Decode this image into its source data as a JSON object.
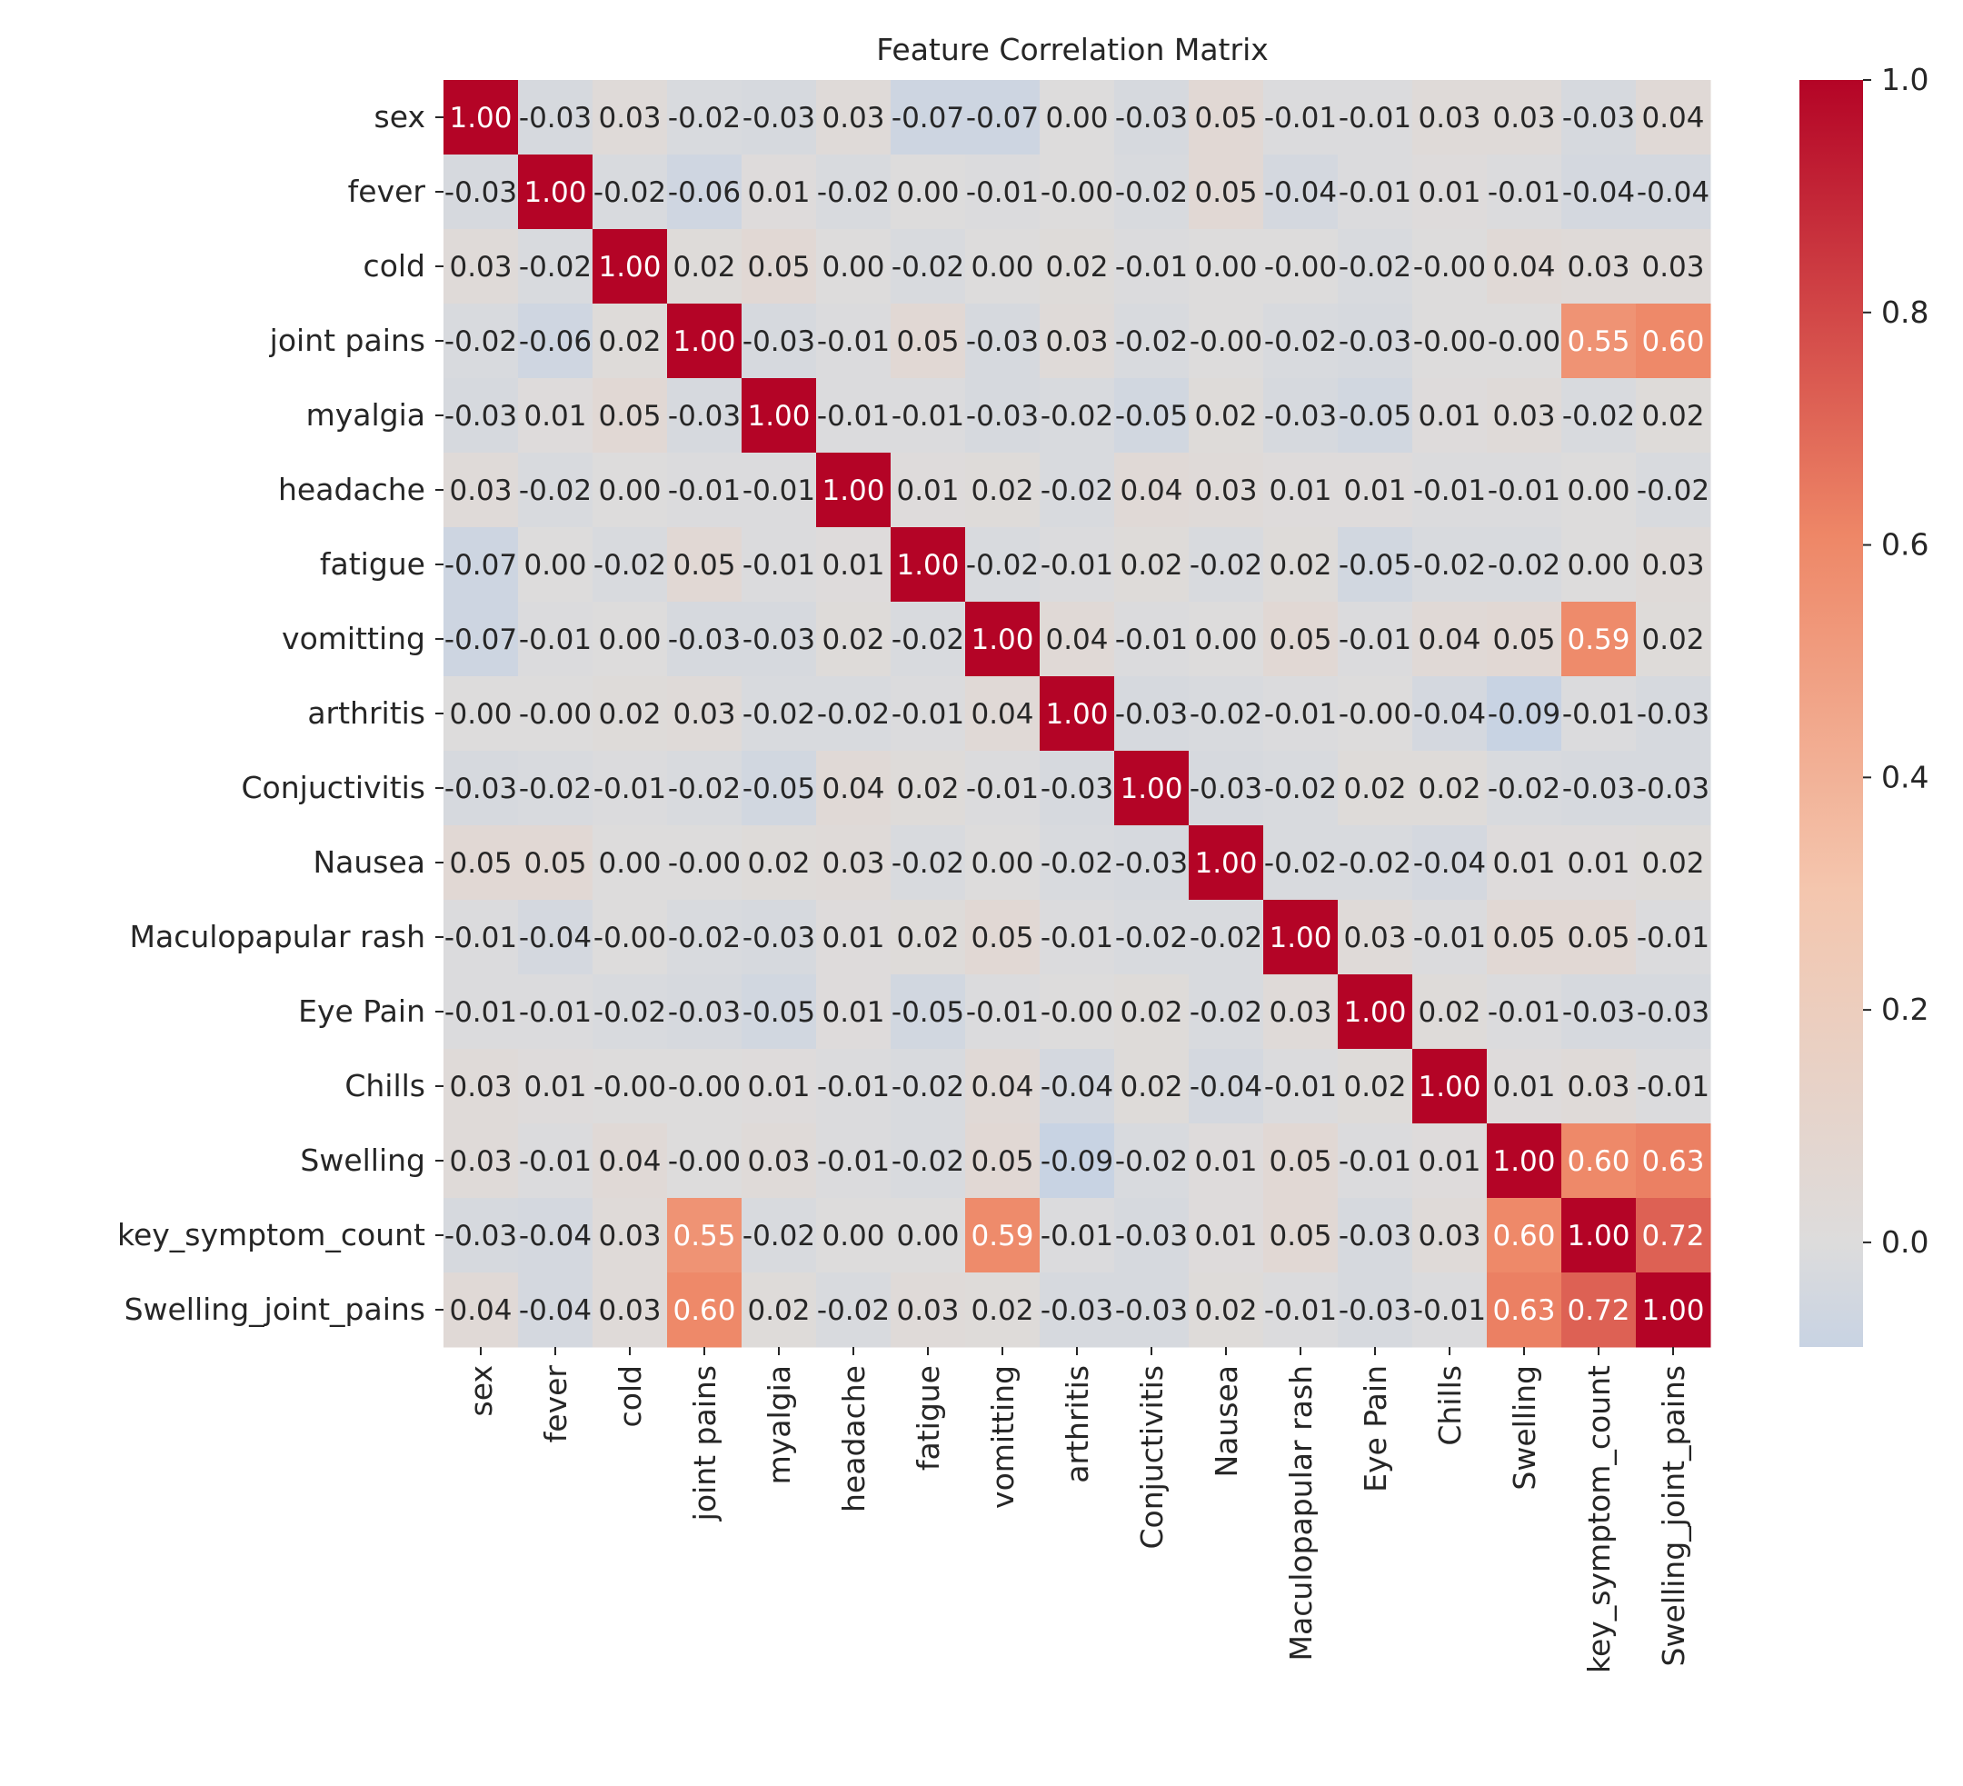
{
  "chart_data": {
    "type": "heatmap",
    "title": "Feature Correlation Matrix",
    "xlabel": "",
    "ylabel": "",
    "labels": [
      "sex",
      "fever",
      "cold",
      "joint pains",
      "myalgia",
      "headache",
      "fatigue",
      "vomitting",
      "arthritis",
      "Conjuctivitis",
      "Nausea",
      "Maculopapular rash",
      "Eye Pain",
      "Chills",
      "Swelling",
      "key_symptom_count",
      "Swelling_joint_pains"
    ],
    "cell_text": [
      [
        "1.00",
        "-0.03",
        "0.03",
        "-0.02",
        "-0.03",
        "0.03",
        "-0.07",
        "-0.07",
        "0.00",
        "-0.03",
        "0.05",
        "-0.01",
        "-0.01",
        "0.03",
        "0.03",
        "-0.03",
        "0.04"
      ],
      [
        "-0.03",
        "1.00",
        "-0.02",
        "-0.06",
        "0.01",
        "-0.02",
        "0.00",
        "-0.01",
        "-0.00",
        "-0.02",
        "0.05",
        "-0.04",
        "-0.01",
        "0.01",
        "-0.01",
        "-0.04",
        "-0.04"
      ],
      [
        "0.03",
        "-0.02",
        "1.00",
        "0.02",
        "0.05",
        "0.00",
        "-0.02",
        "0.00",
        "0.02",
        "-0.01",
        "0.00",
        "-0.00",
        "-0.02",
        "-0.00",
        "0.04",
        "0.03",
        "0.03"
      ],
      [
        "-0.02",
        "-0.06",
        "0.02",
        "1.00",
        "-0.03",
        "-0.01",
        "0.05",
        "-0.03",
        "0.03",
        "-0.02",
        "-0.00",
        "-0.02",
        "-0.03",
        "-0.00",
        "-0.00",
        "0.55",
        "0.60"
      ],
      [
        "-0.03",
        "0.01",
        "0.05",
        "-0.03",
        "1.00",
        "-0.01",
        "-0.01",
        "-0.03",
        "-0.02",
        "-0.05",
        "0.02",
        "-0.03",
        "-0.05",
        "0.01",
        "0.03",
        "-0.02",
        "0.02"
      ],
      [
        "0.03",
        "-0.02",
        "0.00",
        "-0.01",
        "-0.01",
        "1.00",
        "0.01",
        "0.02",
        "-0.02",
        "0.04",
        "0.03",
        "0.01",
        "0.01",
        "-0.01",
        "-0.01",
        "0.00",
        "-0.02"
      ],
      [
        "-0.07",
        "0.00",
        "-0.02",
        "0.05",
        "-0.01",
        "0.01",
        "1.00",
        "-0.02",
        "-0.01",
        "0.02",
        "-0.02",
        "0.02",
        "-0.05",
        "-0.02",
        "-0.02",
        "0.00",
        "0.03"
      ],
      [
        "-0.07",
        "-0.01",
        "0.00",
        "-0.03",
        "-0.03",
        "0.02",
        "-0.02",
        "1.00",
        "0.04",
        "-0.01",
        "0.00",
        "0.05",
        "-0.01",
        "0.04",
        "0.05",
        "0.59",
        "0.02"
      ],
      [
        "0.00",
        "-0.00",
        "0.02",
        "0.03",
        "-0.02",
        "-0.02",
        "-0.01",
        "0.04",
        "1.00",
        "-0.03",
        "-0.02",
        "-0.01",
        "-0.00",
        "-0.04",
        "-0.09",
        "-0.01",
        "-0.03"
      ],
      [
        "-0.03",
        "-0.02",
        "-0.01",
        "-0.02",
        "-0.05",
        "0.04",
        "0.02",
        "-0.01",
        "-0.03",
        "1.00",
        "-0.03",
        "-0.02",
        "0.02",
        "0.02",
        "-0.02",
        "-0.03",
        "-0.03"
      ],
      [
        "0.05",
        "0.05",
        "0.00",
        "-0.00",
        "0.02",
        "0.03",
        "-0.02",
        "0.00",
        "-0.02",
        "-0.03",
        "1.00",
        "-0.02",
        "-0.02",
        "-0.04",
        "0.01",
        "0.01",
        "0.02"
      ],
      [
        "-0.01",
        "-0.04",
        "-0.00",
        "-0.02",
        "-0.03",
        "0.01",
        "0.02",
        "0.05",
        "-0.01",
        "-0.02",
        "-0.02",
        "1.00",
        "0.03",
        "-0.01",
        "0.05",
        "0.05",
        "-0.01"
      ],
      [
        "-0.01",
        "-0.01",
        "-0.02",
        "-0.03",
        "-0.05",
        "0.01",
        "-0.05",
        "-0.01",
        "-0.00",
        "0.02",
        "-0.02",
        "0.03",
        "1.00",
        "0.02",
        "-0.01",
        "-0.03",
        "-0.03"
      ],
      [
        "0.03",
        "0.01",
        "-0.00",
        "-0.00",
        "0.01",
        "-0.01",
        "-0.02",
        "0.04",
        "-0.04",
        "0.02",
        "-0.04",
        "-0.01",
        "0.02",
        "1.00",
        "0.01",
        "0.03",
        "-0.01"
      ],
      [
        "0.03",
        "-0.01",
        "0.04",
        "-0.00",
        "0.03",
        "-0.01",
        "-0.02",
        "0.05",
        "-0.09",
        "-0.02",
        "0.01",
        "0.05",
        "-0.01",
        "0.01",
        "1.00",
        "0.60",
        "0.63"
      ],
      [
        "-0.03",
        "-0.04",
        "0.03",
        "0.55",
        "-0.02",
        "0.00",
        "0.00",
        "0.59",
        "-0.01",
        "-0.03",
        "0.01",
        "0.05",
        "-0.03",
        "0.03",
        "0.60",
        "1.00",
        "0.72"
      ],
      [
        "0.04",
        "-0.04",
        "0.03",
        "0.60",
        "0.02",
        "-0.02",
        "0.03",
        "0.02",
        "-0.03",
        "-0.03",
        "0.02",
        "-0.01",
        "-0.03",
        "-0.01",
        "0.63",
        "0.72",
        "1.00"
      ]
    ],
    "colorbar": {
      "range": [
        -0.09,
        1.0
      ],
      "ticks": [
        "0.0",
        "0.2",
        "0.4",
        "0.6",
        "0.8",
        "1.0"
      ],
      "colormap": "coolwarm",
      "stops": [
        "#c8d3e3",
        "#dddcdc",
        "#f4c6ae",
        "#ee8767",
        "#b40426"
      ]
    },
    "grid": false
  }
}
